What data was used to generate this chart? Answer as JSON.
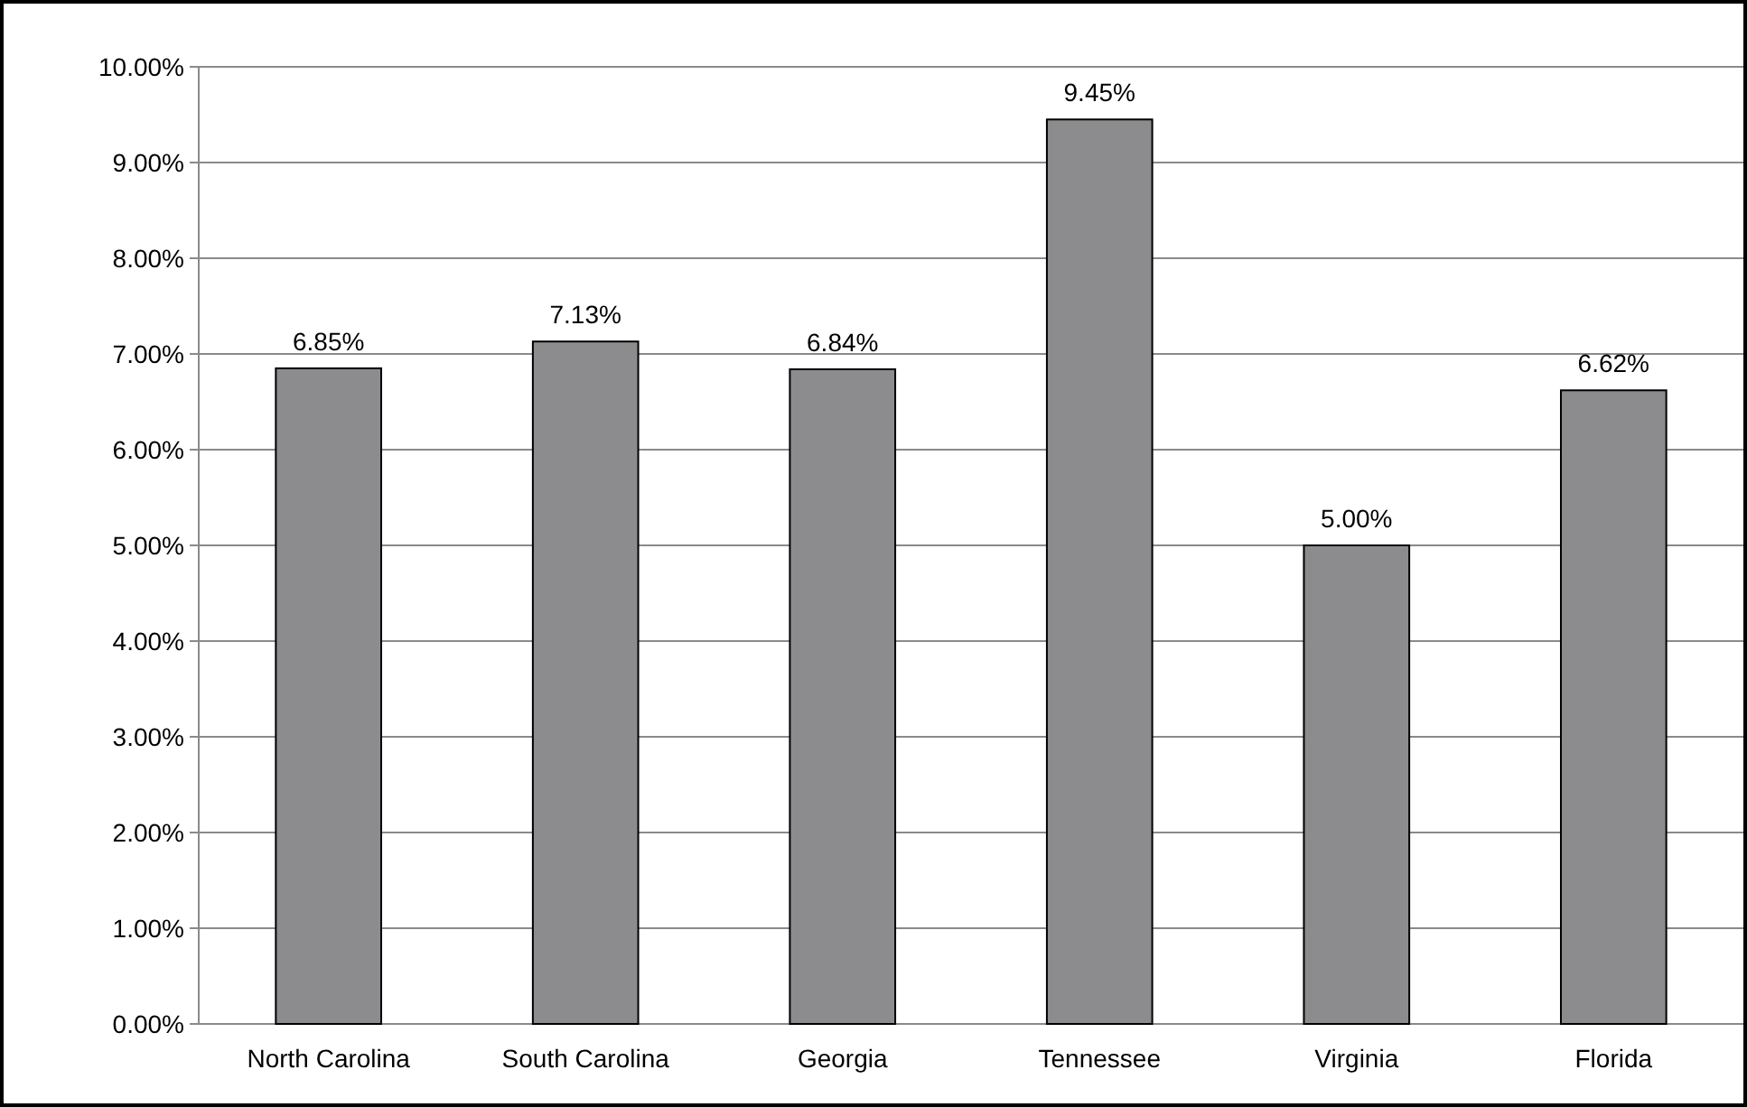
{
  "chart_data": {
    "type": "bar",
    "categories": [
      "North Carolina",
      "South Carolina",
      "Georgia",
      "Tennessee",
      "Virginia",
      "Florida"
    ],
    "values": [
      6.85,
      7.13,
      6.84,
      9.45,
      5.0,
      6.62
    ],
    "value_labels": [
      "6.85%",
      "7.13%",
      "6.84%",
      "9.45%",
      "5.00%",
      "6.62%"
    ],
    "color": "#8c8c8e",
    "ylim": [
      0,
      10
    ],
    "yticks": [
      {
        "value": 0,
        "label": "0.00%"
      },
      {
        "value": 1,
        "label": "1.00%"
      },
      {
        "value": 2,
        "label": "2.00%"
      },
      {
        "value": 3,
        "label": "3.00%"
      },
      {
        "value": 4,
        "label": "4.00%"
      },
      {
        "value": 5,
        "label": "5.00%"
      },
      {
        "value": 6,
        "label": "6.00%"
      },
      {
        "value": 7,
        "label": "7.00%"
      },
      {
        "value": 8,
        "label": "8.00%"
      },
      {
        "value": 9,
        "label": "9.00%"
      },
      {
        "value": 10,
        "label": "10.00%"
      }
    ],
    "grid": "y"
  }
}
